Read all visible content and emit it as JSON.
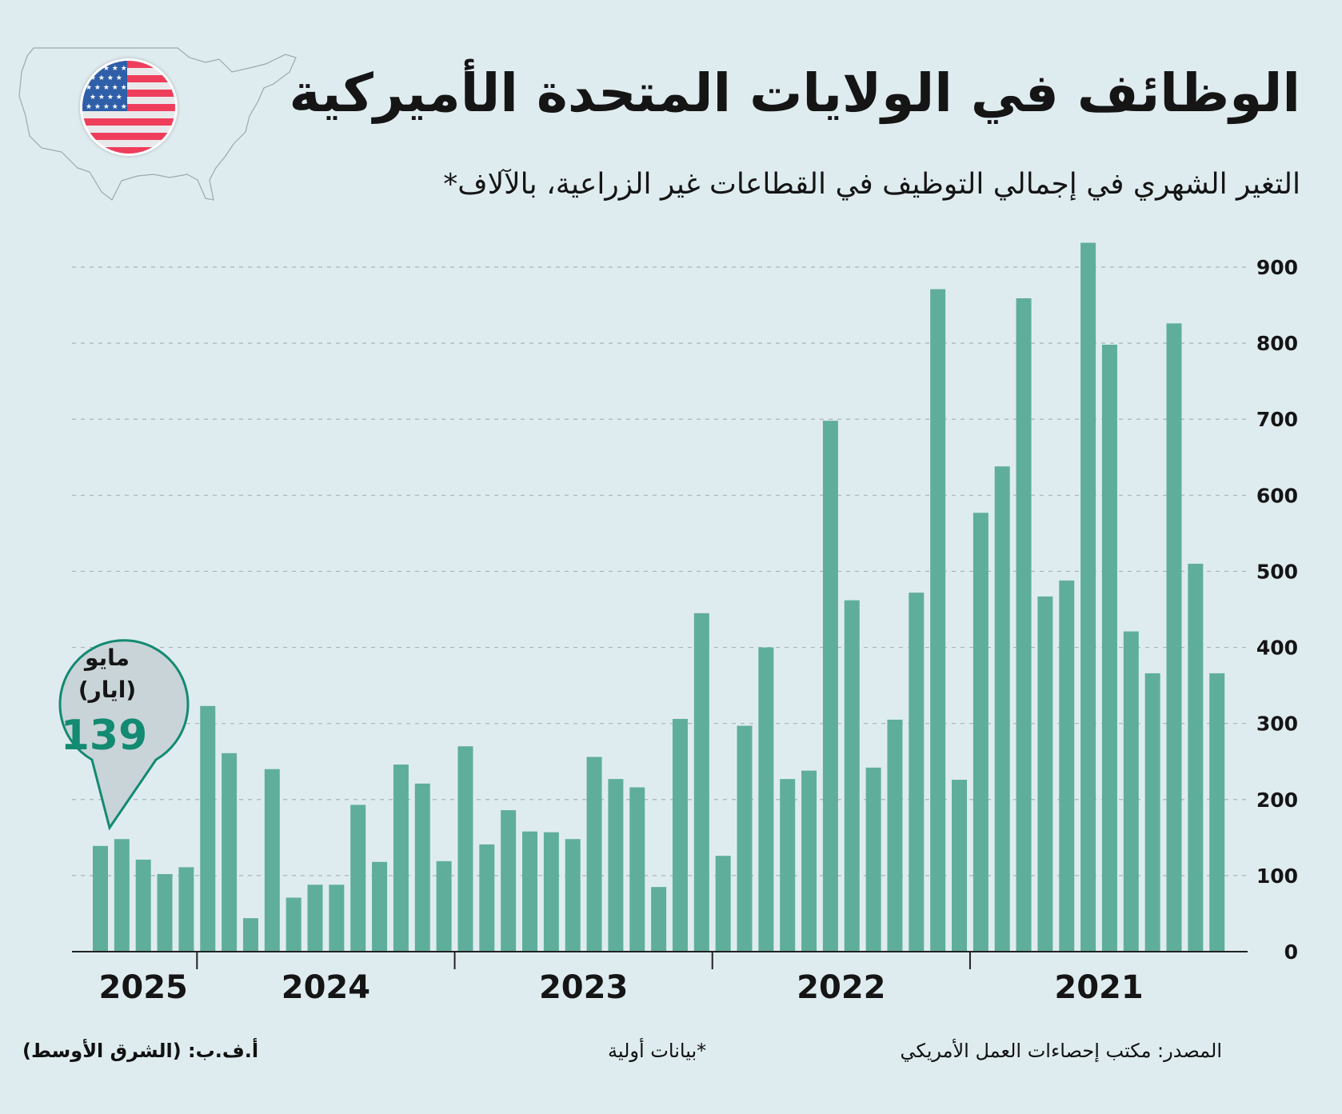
{
  "header": {
    "title": "الوظائف في الولايات المتحدة الأميركية",
    "subtitle": "التغير الشهري في إجمالي التوظيف في القطاعات غير الزراعية، بالآلاف*",
    "icons": [
      "us-map-outline-icon",
      "us-flag-icon"
    ]
  },
  "colors": {
    "background": "#dfecef",
    "bar": "#5fae9c",
    "accent": "#138a72",
    "callout_fill": "#c9d4d8",
    "text": "#151515"
  },
  "callout": {
    "month_line1": "مايو",
    "month_line2": "(ايار)",
    "value": "139"
  },
  "footer": {
    "source": "المصدر: مكتب إحصاءات العمل الأمريكي",
    "note": "*بيانات أولية",
    "credit": "أ.ف.ب: (الشرق الأوسط)"
  },
  "chart_data": {
    "type": "bar",
    "title": "الوظائف في الولايات المتحدة الأميركية",
    "subtitle": "التغير الشهري في إجمالي التوظيف في القطاعات غير الزراعية، بالآلاف*",
    "xlabel": "",
    "ylabel": "",
    "order": "most recent month on the left (May 2025) to oldest on the right (2021)",
    "ylim": [
      0,
      900
    ],
    "yticks": [
      0,
      100,
      200,
      300,
      400,
      500,
      600,
      700,
      800,
      900
    ],
    "grid": true,
    "y_axis_position": "right",
    "year_labels": [
      "2025",
      "2024",
      "2023",
      "2022",
      "2021"
    ],
    "year_bar_counts": [
      5,
      12,
      12,
      12,
      12
    ],
    "values": [
      139,
      148,
      121,
      102,
      111,
      323,
      261,
      44,
      240,
      71,
      88,
      88,
      193,
      118,
      246,
      221,
      119,
      270,
      141,
      186,
      158,
      157,
      148,
      256,
      227,
      216,
      85,
      306,
      445,
      126,
      297,
      400,
      227,
      238,
      698,
      462,
      242,
      305,
      472,
      871,
      226,
      577,
      638,
      859,
      467,
      488,
      932,
      798,
      421,
      366,
      826,
      510,
      366
    ],
    "annotations": [
      {
        "bar_index": 0,
        "text": "مايو (ايار) 139"
      }
    ]
  }
}
